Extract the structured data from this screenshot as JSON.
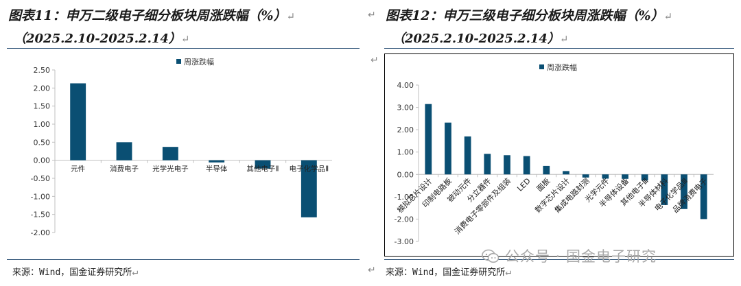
{
  "figures": {
    "left": {
      "title": "图表11：申万二级电子细分板块周涨跌幅（%）",
      "subtitle": "（2025.2.10-2025.2.14）",
      "source": "来源：Wind，国金证券研究所"
    },
    "right": {
      "title": "图表12：申万三级电子细分板块周涨跌幅（%）",
      "subtitle": "（2025.2.10-2025.2.14）",
      "source": "来源：Wind，国金证券研究所"
    }
  },
  "return_mark": "↵",
  "watermark": "公众号 · 国金电子研究",
  "colors": {
    "bar": "#0a4f73",
    "axis": "#bfbfbf",
    "rule": "#2a4f74"
  },
  "chart_data": [
    {
      "type": "bar",
      "legend": "周涨跌幅",
      "legend_position": "top-center",
      "categories": [
        "元件",
        "消费电子",
        "光学光电子",
        "半导体",
        "其他电子Ⅱ",
        "电子化学品Ⅱ"
      ],
      "values": [
        2.13,
        0.5,
        0.37,
        -0.06,
        -0.23,
        -1.58
      ],
      "y_ticks": [
        "2.50",
        "2.00",
        "1.50",
        "1.00",
        "0.50",
        "0.00",
        "-0.50",
        "-1.00",
        "-1.50",
        "-2.00"
      ],
      "ylim": [
        -2.0,
        2.5
      ],
      "grid": false
    },
    {
      "type": "bar",
      "legend": "周涨跌幅",
      "legend_position": "top-center",
      "categories": [
        "模拟芯片设计",
        "印制电路板",
        "被动元件",
        "分立器件",
        "消费电子零部件及组装",
        "LED",
        "面板",
        "数字芯片设计",
        "集成电路封测",
        "光学元件",
        "半导体设备",
        "其他电子Ⅲ",
        "半导体材料",
        "电子化学品Ⅲ",
        "品牌消费电子"
      ],
      "values": [
        3.15,
        2.32,
        1.7,
        0.92,
        0.86,
        0.82,
        0.38,
        0.15,
        -0.14,
        -0.19,
        -0.2,
        -0.27,
        -1.37,
        -1.55,
        -2.0
      ],
      "y_ticks": [
        "4.00",
        "3.00",
        "2.00",
        "1.00",
        "0.00",
        "-1.00",
        "-2.00",
        "-3.00"
      ],
      "ylim": [
        -3.0,
        4.0
      ],
      "grid": false
    }
  ]
}
